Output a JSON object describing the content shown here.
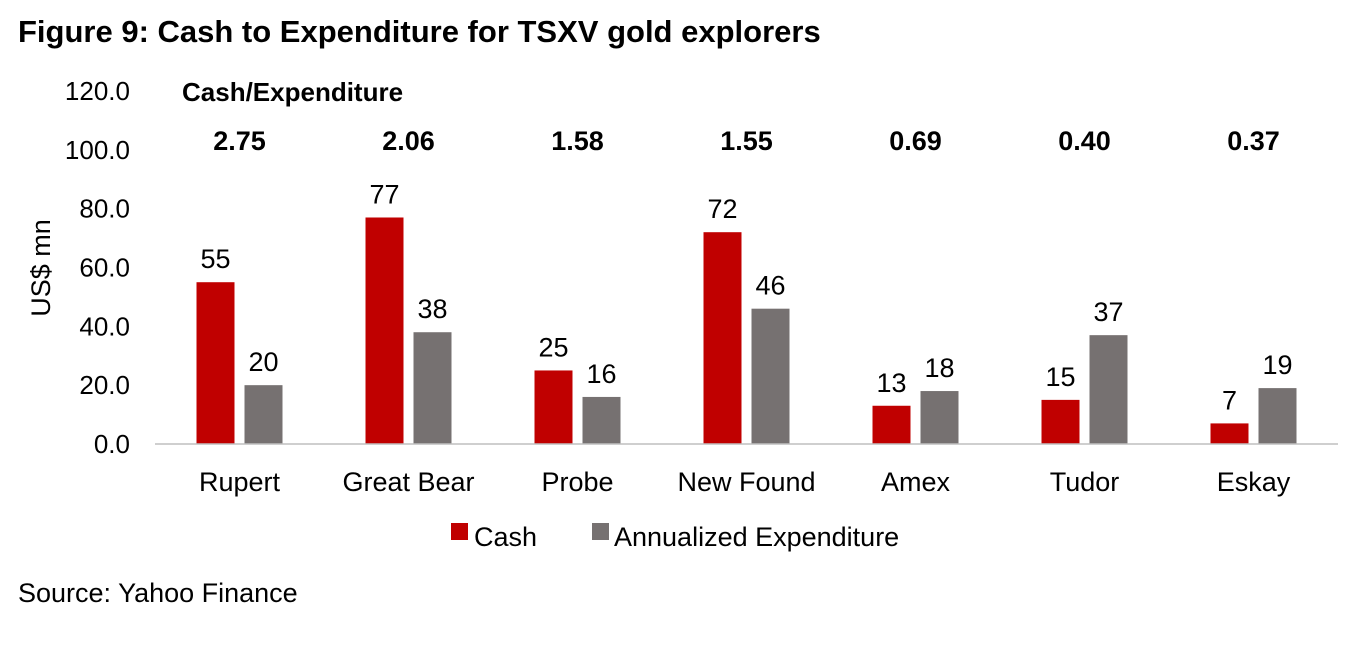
{
  "figure_title": "Figure 9: Cash to Expenditure for TSXV gold explorers",
  "source": "Source: Yahoo Finance",
  "colors": {
    "cash": "#c00000",
    "expenditure": "#767171",
    "axis": "#bfbfbf"
  },
  "chart_data": {
    "type": "bar",
    "ylabel": "US$ mn",
    "ylim": [
      0,
      120
    ],
    "yticks": [
      "0.0",
      "20.0",
      "40.0",
      "60.0",
      "80.0",
      "100.0",
      "120.0"
    ],
    "ratio_label": "Cash/Expenditure",
    "categories": [
      "Rupert",
      "Great Bear",
      "Probe",
      "New Found",
      "Amex",
      "Tudor",
      "Eskay"
    ],
    "ratios": [
      "2.75",
      "2.06",
      "1.58",
      "1.55",
      "0.69",
      "0.40",
      "0.37"
    ],
    "series": [
      {
        "name": "Cash",
        "values": [
          55,
          77,
          25,
          72,
          13,
          15,
          7
        ]
      },
      {
        "name": "Annualized Expenditure",
        "values": [
          20,
          38,
          16,
          46,
          18,
          37,
          19
        ]
      }
    ],
    "legend_position": "bottom"
  }
}
